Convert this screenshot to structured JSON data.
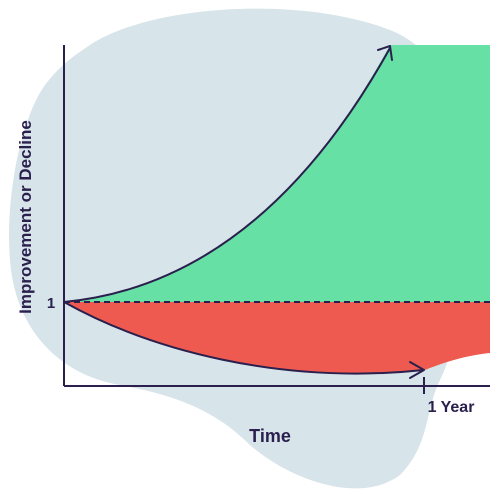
{
  "diagram": {
    "y_axis_label": "Improvement or Decline",
    "x_axis_label": "Time",
    "baseline_tick_label": "1",
    "x_end_tick_label": "1 Year",
    "colors": {
      "background_blob": "#d7e4ea",
      "improvement_fill": "#67e0a6",
      "decline_fill": "#ee5a4f",
      "axis_and_curves": "#2a1f4d",
      "baseline_dash": "#2a1f4d"
    }
  }
}
